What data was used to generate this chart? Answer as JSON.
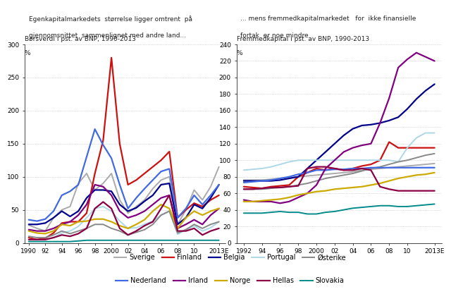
{
  "left_title1": "Egenkapitalmarkedets  størrelse ligger omtrent  på",
  "left_title2": "gjennomsnittet  sammenlignet med andre land...",
  "left_subtitle1": "Børsverdi i pst. av BNP, 1990-2013",
  "left_subtitle2": "%",
  "left_ylim": [
    0,
    300
  ],
  "left_yticks": [
    0,
    50,
    100,
    150,
    200,
    250,
    300
  ],
  "left_xtick_pos": [
    1990,
    1992,
    1994,
    1996,
    1998,
    2000,
    2002,
    2004,
    2006,
    2008,
    2010,
    2013
  ],
  "left_xtick_labels": [
    "1990",
    "92",
    "94",
    "96",
    "98",
    "2000",
    "02",
    "04",
    "06",
    "08",
    "10",
    "2013E"
  ],
  "left_xlim": [
    1989.5,
    2013.8
  ],
  "right_title1": "... mens fremmedkapitalmarkedet   for  ikke finansielle",
  "right_title2": "fortak  er noe mindre",
  "right_subtitle1": "Fremmedkapital i pst. av BNP, 1990-2013",
  "right_subtitle2": "%",
  "right_ylim": [
    0,
    240
  ],
  "right_yticks": [
    0,
    20,
    40,
    60,
    80,
    100,
    120,
    140,
    160,
    180,
    200,
    220,
    240
  ],
  "right_xtick_pos": [
    1992,
    1994,
    1996,
    1998,
    2000,
    2002,
    2004,
    2006,
    2008,
    2010,
    2013
  ],
  "right_xtick_labels": [
    "1992",
    "94",
    "96",
    "98",
    "2000",
    "02",
    "04",
    "06",
    "08",
    "10",
    "2013E"
  ],
  "right_xlim": [
    1991.2,
    2013.8
  ],
  "legend_entries": [
    {
      "label": "Sverige",
      "color": "#aaaaaa",
      "lw": 1.4
    },
    {
      "label": "Finland",
      "color": "#cc1111",
      "lw": 1.6
    },
    {
      "label": "Belgia",
      "color": "#00008b",
      "lw": 1.6
    },
    {
      "label": "Portugal",
      "color": "#add8e6",
      "lw": 1.4
    },
    {
      "label": "Østerike",
      "color": "#888888",
      "lw": 1.4
    },
    {
      "label": "Nederland",
      "color": "#4169e1",
      "lw": 1.6
    },
    {
      "label": "Irland",
      "color": "#800080",
      "lw": 1.6
    },
    {
      "label": "Norge",
      "color": "#ccaa00",
      "lw": 1.6
    },
    {
      "label": "Hellas",
      "color": "#8b0045",
      "lw": 1.6
    },
    {
      "label": "Slovakia",
      "color": "#008b8b",
      "lw": 1.4
    }
  ],
  "left_data": {
    "Sverige": {
      "x": [
        1990,
        1991,
        1992,
        1993,
        1994,
        1995,
        1996,
        1997,
        1998,
        1999,
        2000,
        2001,
        2002,
        2003,
        2004,
        2005,
        2006,
        2007,
        2008,
        2009,
        2010,
        2011,
        2012,
        2013
      ],
      "y": [
        27,
        22,
        18,
        38,
        50,
        55,
        90,
        105,
        80,
        90,
        105,
        65,
        45,
        55,
        65,
        82,
        95,
        100,
        28,
        50,
        80,
        65,
        85,
        115
      ]
    },
    "Finland": {
      "x": [
        1990,
        1991,
        1992,
        1993,
        1994,
        1995,
        1996,
        1997,
        1998,
        1999,
        2000,
        2001,
        2002,
        2003,
        2004,
        2005,
        2006,
        2007,
        2008,
        2009,
        2010,
        2011,
        2012,
        2013
      ],
      "y": [
        8,
        5,
        7,
        15,
        30,
        32,
        32,
        45,
        105,
        155,
        280,
        150,
        88,
        95,
        105,
        115,
        125,
        138,
        38,
        50,
        60,
        55,
        65,
        72
      ]
    },
    "Belgia": {
      "x": [
        1990,
        1991,
        1992,
        1993,
        1994,
        1995,
        1996,
        1997,
        1998,
        1999,
        2000,
        2001,
        2002,
        2003,
        2004,
        2005,
        2006,
        2007,
        2008,
        2009,
        2010,
        2011,
        2012,
        2013
      ],
      "y": [
        28,
        28,
        30,
        38,
        48,
        40,
        48,
        68,
        80,
        80,
        78,
        58,
        48,
        53,
        63,
        72,
        88,
        90,
        28,
        38,
        58,
        52,
        68,
        88
      ]
    },
    "Portugal": {
      "x": [
        1990,
        1991,
        1992,
        1993,
        1994,
        1995,
        1996,
        1997,
        1998,
        1999,
        2000,
        2001,
        2002,
        2003,
        2004,
        2005,
        2006,
        2007,
        2008,
        2009,
        2010,
        2011,
        2012,
        2013
      ],
      "y": [
        5,
        5,
        5,
        8,
        15,
        18,
        25,
        38,
        52,
        55,
        48,
        33,
        22,
        23,
        28,
        33,
        42,
        48,
        13,
        20,
        26,
        18,
        23,
        32
      ]
    },
    "Østerike": {
      "x": [
        1990,
        1991,
        1992,
        1993,
        1994,
        1995,
        1996,
        1997,
        1998,
        1999,
        2000,
        2001,
        2002,
        2003,
        2004,
        2005,
        2006,
        2007,
        2008,
        2009,
        2010,
        2011,
        2012,
        2013
      ],
      "y": [
        10,
        8,
        8,
        12,
        18,
        14,
        18,
        22,
        28,
        28,
        22,
        18,
        12,
        16,
        20,
        28,
        42,
        48,
        15,
        20,
        28,
        22,
        28,
        32
      ]
    },
    "Nederland": {
      "x": [
        1990,
        1991,
        1992,
        1993,
        1994,
        1995,
        1996,
        1997,
        1998,
        1999,
        2000,
        2001,
        2002,
        2003,
        2004,
        2005,
        2006,
        2007,
        2008,
        2009,
        2010,
        2011,
        2012,
        2013
      ],
      "y": [
        35,
        33,
        36,
        48,
        72,
        78,
        88,
        130,
        172,
        148,
        128,
        88,
        52,
        68,
        82,
        95,
        108,
        112,
        38,
        52,
        72,
        58,
        72,
        88
      ]
    },
    "Irland": {
      "x": [
        1990,
        1991,
        1992,
        1993,
        1994,
        1995,
        1996,
        1997,
        1998,
        1999,
        2000,
        2001,
        2002,
        2003,
        2004,
        2005,
        2006,
        2007,
        2008,
        2009,
        2010,
        2011,
        2012,
        2013
      ],
      "y": [
        20,
        18,
        18,
        22,
        28,
        32,
        42,
        58,
        88,
        85,
        72,
        48,
        38,
        42,
        48,
        58,
        68,
        72,
        22,
        28,
        35,
        28,
        42,
        52
      ]
    },
    "Norge": {
      "x": [
        1990,
        1991,
        1992,
        1993,
        1994,
        1995,
        1996,
        1997,
        1998,
        1999,
        2000,
        2001,
        2002,
        2003,
        2004,
        2005,
        2006,
        2007,
        2008,
        2009,
        2010,
        2011,
        2012,
        2013
      ],
      "y": [
        18,
        15,
        14,
        18,
        28,
        26,
        32,
        33,
        36,
        36,
        32,
        26,
        22,
        28,
        35,
        48,
        58,
        52,
        22,
        38,
        48,
        42,
        48,
        52
      ]
    },
    "Hellas": {
      "x": [
        1990,
        1991,
        1992,
        1993,
        1994,
        1995,
        1996,
        1997,
        1998,
        1999,
        2000,
        2001,
        2002,
        2003,
        2004,
        2005,
        2006,
        2007,
        2008,
        2009,
        2010,
        2011,
        2012,
        2013
      ],
      "y": [
        5,
        5,
        5,
        8,
        12,
        10,
        14,
        22,
        52,
        62,
        52,
        22,
        12,
        18,
        26,
        32,
        52,
        72,
        18,
        18,
        22,
        12,
        18,
        22
      ]
    },
    "Slovakia": {
      "x": [
        1990,
        1991,
        1992,
        1993,
        1994,
        1995,
        1996,
        1997,
        1998,
        1999,
        2000,
        2001,
        2002,
        2003,
        2004,
        2005,
        2006,
        2007,
        2008,
        2009,
        2010,
        2011,
        2012,
        2013
      ],
      "y": [
        2,
        2,
        2,
        2,
        2,
        2,
        3,
        4,
        4,
        4,
        4,
        4,
        4,
        4,
        4,
        4,
        4,
        4,
        4,
        4,
        4,
        4,
        4,
        4
      ]
    }
  },
  "right_data": {
    "Sverige": {
      "x": [
        1992,
        1993,
        1994,
        1995,
        1996,
        1997,
        1998,
        1999,
        2000,
        2001,
        2002,
        2003,
        2004,
        2005,
        2006,
        2007,
        2008,
        2009,
        2010,
        2011,
        2012,
        2013
      ],
      "y": [
        76,
        76,
        76,
        77,
        78,
        79,
        80,
        81,
        82,
        83,
        84,
        85,
        86,
        88,
        89,
        90,
        91,
        92,
        93,
        94,
        95,
        96
      ]
    },
    "Finland": {
      "x": [
        1992,
        1993,
        1994,
        1995,
        1996,
        1997,
        1998,
        1999,
        2000,
        2001,
        2002,
        2003,
        2004,
        2005,
        2006,
        2007,
        2008,
        2009,
        2010,
        2011,
        2012,
        2013
      ],
      "y": [
        68,
        67,
        66,
        68,
        69,
        70,
        80,
        85,
        90,
        88,
        90,
        88,
        90,
        93,
        95,
        100,
        122,
        115,
        115,
        115,
        115,
        115
      ]
    },
    "Belgia": {
      "x": [
        1992,
        1993,
        1994,
        1995,
        1996,
        1997,
        1998,
        1999,
        2000,
        2001,
        2002,
        2003,
        2004,
        2005,
        2006,
        2007,
        2008,
        2009,
        2010,
        2011,
        2012,
        2013
      ],
      "y": [
        75,
        75,
        75,
        75,
        76,
        78,
        80,
        90,
        100,
        110,
        120,
        130,
        138,
        142,
        143,
        145,
        148,
        152,
        162,
        174,
        184,
        192
      ]
    },
    "Portugal": {
      "x": [
        1992,
        1993,
        1994,
        1995,
        1996,
        1997,
        1998,
        1999,
        2000,
        2001,
        2002,
        2003,
        2004,
        2005,
        2006,
        2007,
        2008,
        2009,
        2010,
        2011,
        2012,
        2013
      ],
      "y": [
        88,
        89,
        90,
        92,
        95,
        98,
        100,
        100,
        100,
        100,
        100,
        100,
        100,
        100,
        100,
        100,
        100,
        98,
        115,
        127,
        133,
        133
      ]
    },
    "Østerike": {
      "x": [
        1992,
        1993,
        1994,
        1995,
        1996,
        1997,
        1998,
        1999,
        2000,
        2001,
        2002,
        2003,
        2004,
        2005,
        2006,
        2007,
        2008,
        2009,
        2010,
        2011,
        2012,
        2013
      ],
      "y": [
        65,
        65,
        65,
        66,
        67,
        68,
        70,
        72,
        75,
        78,
        80,
        82,
        84,
        87,
        90,
        92,
        95,
        98,
        100,
        103,
        106,
        108
      ]
    },
    "Nederland": {
      "x": [
        1992,
        1993,
        1994,
        1995,
        1996,
        1997,
        1998,
        1999,
        2000,
        2001,
        2002,
        2003,
        2004,
        2005,
        2006,
        2007,
        2008,
        2009,
        2010,
        2011,
        2012,
        2013
      ],
      "y": [
        73,
        74,
        75,
        76,
        78,
        80,
        83,
        85,
        88,
        88,
        89,
        89,
        90,
        90,
        91,
        91,
        91,
        91,
        91,
        91,
        91,
        91
      ]
    },
    "Irland": {
      "x": [
        1992,
        1993,
        1994,
        1995,
        1996,
        1997,
        1998,
        1999,
        2000,
        2001,
        2002,
        2003,
        2004,
        2005,
        2006,
        2007,
        2008,
        2009,
        2010,
        2011,
        2012,
        2013
      ],
      "y": [
        52,
        50,
        50,
        50,
        48,
        50,
        55,
        60,
        70,
        90,
        100,
        110,
        115,
        118,
        120,
        145,
        175,
        212,
        222,
        230,
        225,
        220
      ]
    },
    "Norge": {
      "x": [
        1992,
        1993,
        1994,
        1995,
        1996,
        1997,
        1998,
        1999,
        2000,
        2001,
        2002,
        2003,
        2004,
        2005,
        2006,
        2007,
        2008,
        2009,
        2010,
        2011,
        2012,
        2013
      ],
      "y": [
        50,
        50,
        51,
        52,
        53,
        55,
        58,
        60,
        62,
        63,
        65,
        66,
        67,
        68,
        70,
        72,
        75,
        78,
        80,
        82,
        83,
        85
      ]
    },
    "Hellas": {
      "x": [
        1992,
        1993,
        1994,
        1995,
        1996,
        1997,
        1998,
        1999,
        2000,
        2001,
        2002,
        2003,
        2004,
        2005,
        2006,
        2007,
        2008,
        2009,
        2010,
        2011,
        2012,
        2013
      ],
      "y": [
        65,
        65,
        66,
        67,
        67,
        68,
        69,
        90,
        92,
        92,
        90,
        88,
        88,
        90,
        88,
        68,
        65,
        63,
        63,
        63,
        63,
        63
      ]
    },
    "Slovakia": {
      "x": [
        1992,
        1993,
        1994,
        1995,
        1996,
        1997,
        1998,
        1999,
        2000,
        2001,
        2002,
        2003,
        2004,
        2005,
        2006,
        2007,
        2008,
        2009,
        2010,
        2011,
        2012,
        2013
      ],
      "y": [
        36,
        36,
        36,
        37,
        38,
        37,
        37,
        35,
        35,
        37,
        38,
        40,
        42,
        43,
        44,
        45,
        45,
        44,
        44,
        45,
        46,
        47
      ]
    }
  },
  "bg_color": "#d6e4f0",
  "plot_bg": "#ffffff",
  "fig_bg": "#ffffff"
}
